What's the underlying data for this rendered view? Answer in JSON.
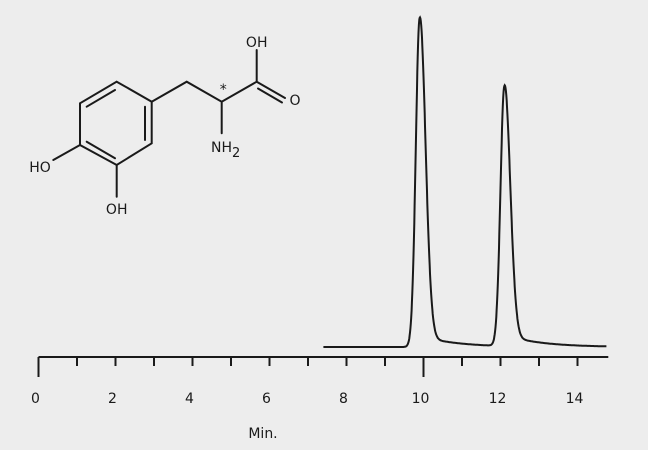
{
  "chart_data": {
    "type": "line",
    "xlabel": "Min.",
    "ylabel": "",
    "xlim": [
      0,
      14.8
    ],
    "x_ticks_major_labels": [
      "0",
      "2",
      "4",
      "6",
      "8",
      "10",
      "12",
      "14"
    ],
    "x_ticks_minor_step": 1,
    "grid": false,
    "trace_range": [
      7.4,
      14.75
    ],
    "peaks": [
      {
        "retention_time": 9.9,
        "relative_height": 100
      },
      {
        "retention_time": 12.1,
        "relative_height": 79
      }
    ],
    "line_color": "#1a1a1a"
  },
  "molecule": {
    "labels": {
      "oh_acid": "OH",
      "o_carbonyl": "O",
      "nh2": "NH",
      "nh2_sub": "2",
      "ho_left": "HO",
      "oh_bottom": "OH",
      "chiral_mark": "*"
    }
  }
}
